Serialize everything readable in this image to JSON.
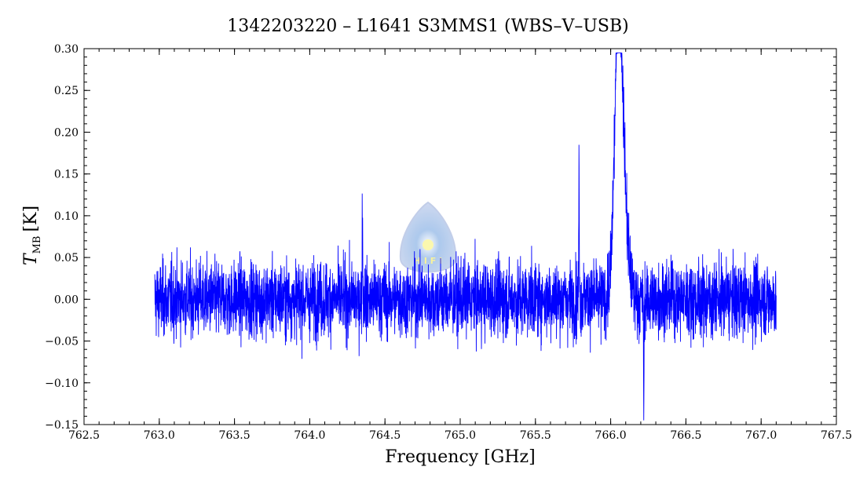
{
  "chart_data": {
    "type": "line",
    "title": "1342203220 – L1641 S3MMS1 (WBS–V–USB)",
    "xlabel": "Frequency [GHz]",
    "ylabel": {
      "symbol": "T",
      "subscript": "MB",
      "unit": "[K]"
    },
    "xlim": [
      762.5,
      767.5
    ],
    "ylim": [
      -0.15,
      0.3
    ],
    "x_ticks": [
      "762.5",
      "763.0",
      "763.5",
      "764.0",
      "764.5",
      "765.0",
      "765.5",
      "766.0",
      "766.5",
      "767.0",
      "767.5"
    ],
    "y_ticks": [
      "−0.15",
      "−0.10",
      "−0.05",
      "0.00",
      "0.05",
      "0.10",
      "0.15",
      "0.20",
      "0.25",
      "0.30"
    ],
    "grid": false,
    "series": [
      {
        "color": "#0000ff",
        "x_range": [
          762.97,
          767.1
        ],
        "noise_rms": 0.03,
        "features": [
          {
            "x": 766.05,
            "peak": 0.28,
            "width": 0.025
          },
          {
            "x": 766.08,
            "peak": 0.12,
            "width": 0.03
          },
          {
            "x": 765.79,
            "peak": 0.16,
            "width": 0.002
          },
          {
            "x": 764.35,
            "peak": 0.11,
            "width": 0.002
          },
          {
            "x": 766.22,
            "peak": -0.13,
            "width": 0.002
          }
        ]
      }
    ]
  },
  "watermark": {
    "name": "hifi-logo-icon",
    "colors": [
      "#c7d3ee",
      "#7fa0d8",
      "#f6f08c"
    ]
  }
}
